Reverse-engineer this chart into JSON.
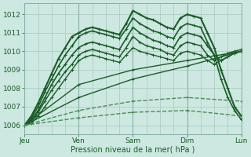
{
  "title": "",
  "xlabel": "Pression niveau de la mer( hPa )",
  "bg_color": "#cce8e0",
  "plot_bg_color": "#cce8e0",
  "grid_color": "#aac8c0",
  "line_color_solid": "#1a5c28",
  "line_color_dashed": "#4a8c58",
  "xmin": 0,
  "xmax": 96,
  "ymin": 1005.5,
  "ymax": 1012.6,
  "day_ticks": [
    0,
    24,
    48,
    72,
    96
  ],
  "day_labels": [
    "Jeu",
    "Ven",
    "Sam",
    "Dim",
    "Lun"
  ],
  "yticks": [
    1006,
    1007,
    1008,
    1009,
    1010,
    1011,
    1012
  ],
  "series": [
    {
      "x": [
        0,
        3,
        6,
        9,
        12,
        15,
        18,
        21,
        24,
        27,
        30,
        33,
        36,
        39,
        42,
        45,
        48,
        51,
        54,
        57,
        60,
        63,
        66,
        69,
        72,
        75,
        78,
        81,
        84,
        87,
        90,
        93,
        96
      ],
      "y": [
        1006.0,
        1006.5,
        1007.2,
        1008.0,
        1008.8,
        1009.6,
        1010.2,
        1010.8,
        1011.0,
        1011.2,
        1011.3,
        1011.2,
        1011.1,
        1011.0,
        1010.9,
        1011.5,
        1012.2,
        1012.0,
        1011.8,
        1011.7,
        1011.5,
        1011.3,
        1011.2,
        1011.8,
        1012.0,
        1011.9,
        1011.8,
        1011.0,
        1010.2,
        1009.0,
        1008.0,
        1007.0,
        1006.5
      ],
      "style": "solid",
      "lw": 1.5
    },
    {
      "x": [
        0,
        3,
        6,
        9,
        12,
        15,
        18,
        21,
        24,
        27,
        30,
        33,
        36,
        39,
        42,
        45,
        48,
        51,
        54,
        57,
        60,
        63,
        66,
        69,
        72,
        75,
        78,
        81,
        84,
        87,
        90,
        93,
        96
      ],
      "y": [
        1006.0,
        1006.4,
        1007.0,
        1007.8,
        1008.5,
        1009.2,
        1009.8,
        1010.3,
        1010.8,
        1011.0,
        1011.1,
        1011.0,
        1010.9,
        1010.8,
        1010.7,
        1011.2,
        1011.8,
        1011.5,
        1011.3,
        1011.1,
        1011.0,
        1010.8,
        1010.7,
        1011.3,
        1011.5,
        1011.4,
        1011.3,
        1010.5,
        1009.8,
        1008.5,
        1007.5,
        1006.8,
        1006.3
      ],
      "style": "solid",
      "lw": 1.2
    },
    {
      "x": [
        0,
        3,
        6,
        9,
        12,
        15,
        18,
        21,
        24,
        27,
        30,
        33,
        36,
        39,
        42,
        45,
        48,
        51,
        54,
        57,
        60,
        63,
        66,
        69,
        72,
        75,
        78,
        81,
        84,
        87,
        90,
        93,
        96
      ],
      "y": [
        1006.0,
        1006.3,
        1006.8,
        1007.5,
        1008.2,
        1008.8,
        1009.3,
        1009.8,
        1010.2,
        1010.4,
        1010.5,
        1010.4,
        1010.3,
        1010.2,
        1010.1,
        1010.7,
        1011.3,
        1011.0,
        1010.8,
        1010.6,
        1010.5,
        1010.3,
        1010.2,
        1010.8,
        1011.0,
        1010.9,
        1010.8,
        1010.3,
        1009.8,
        1009.5,
        1009.7,
        1009.9,
        1010.0
      ],
      "style": "solid",
      "lw": 1.2
    },
    {
      "x": [
        0,
        3,
        6,
        9,
        12,
        15,
        18,
        21,
        24,
        27,
        30,
        33,
        36,
        39,
        42,
        45,
        48,
        51,
        54,
        57,
        60,
        63,
        66,
        69,
        72,
        75,
        78,
        81,
        84,
        87,
        90,
        93,
        96
      ],
      "y": [
        1006.0,
        1006.2,
        1006.7,
        1007.3,
        1007.9,
        1008.4,
        1008.9,
        1009.3,
        1009.8,
        1010.0,
        1010.1,
        1010.0,
        1009.9,
        1009.8,
        1009.7,
        1010.2,
        1010.8,
        1010.5,
        1010.3,
        1010.2,
        1010.1,
        1009.9,
        1009.8,
        1010.3,
        1010.5,
        1010.4,
        1010.3,
        1009.8,
        1009.5,
        1009.7,
        1009.9,
        1010.0,
        1010.1
      ],
      "style": "solid",
      "lw": 1.1
    },
    {
      "x": [
        0,
        3,
        6,
        9,
        12,
        15,
        18,
        21,
        24,
        27,
        30,
        33,
        36,
        39,
        42,
        45,
        48,
        51,
        54,
        57,
        60,
        63,
        66,
        69,
        72,
        75,
        78,
        81,
        84,
        87,
        90,
        93,
        96
      ],
      "y": [
        1006.0,
        1006.1,
        1006.5,
        1007.0,
        1007.5,
        1008.0,
        1008.5,
        1009.0,
        1009.5,
        1009.7,
        1009.8,
        1009.7,
        1009.6,
        1009.5,
        1009.4,
        1009.8,
        1010.2,
        1010.0,
        1009.9,
        1009.8,
        1009.7,
        1009.6,
        1009.5,
        1009.9,
        1010.0,
        1009.9,
        1009.8,
        1009.5,
        1009.3,
        1009.5,
        1009.7,
        1009.9,
        1010.0
      ],
      "style": "solid",
      "lw": 1.0
    },
    {
      "x": [
        0,
        24,
        48,
        72,
        96
      ],
      "y": [
        1006.0,
        1008.2,
        1009.0,
        1009.5,
        1010.0
      ],
      "style": "solid",
      "lw": 1.0
    },
    {
      "x": [
        0,
        24,
        48,
        72,
        96
      ],
      "y": [
        1006.0,
        1007.5,
        1008.5,
        1009.2,
        1010.0
      ],
      "style": "solid",
      "lw": 1.0
    },
    {
      "x": [
        0,
        24,
        48,
        72,
        96
      ],
      "y": [
        1006.0,
        1006.8,
        1007.3,
        1007.5,
        1007.3
      ],
      "style": "dashed",
      "lw": 1.0
    },
    {
      "x": [
        0,
        24,
        48,
        72,
        96
      ],
      "y": [
        1006.0,
        1006.4,
        1006.7,
        1006.8,
        1006.5
      ],
      "style": "dashed",
      "lw": 1.0
    }
  ]
}
